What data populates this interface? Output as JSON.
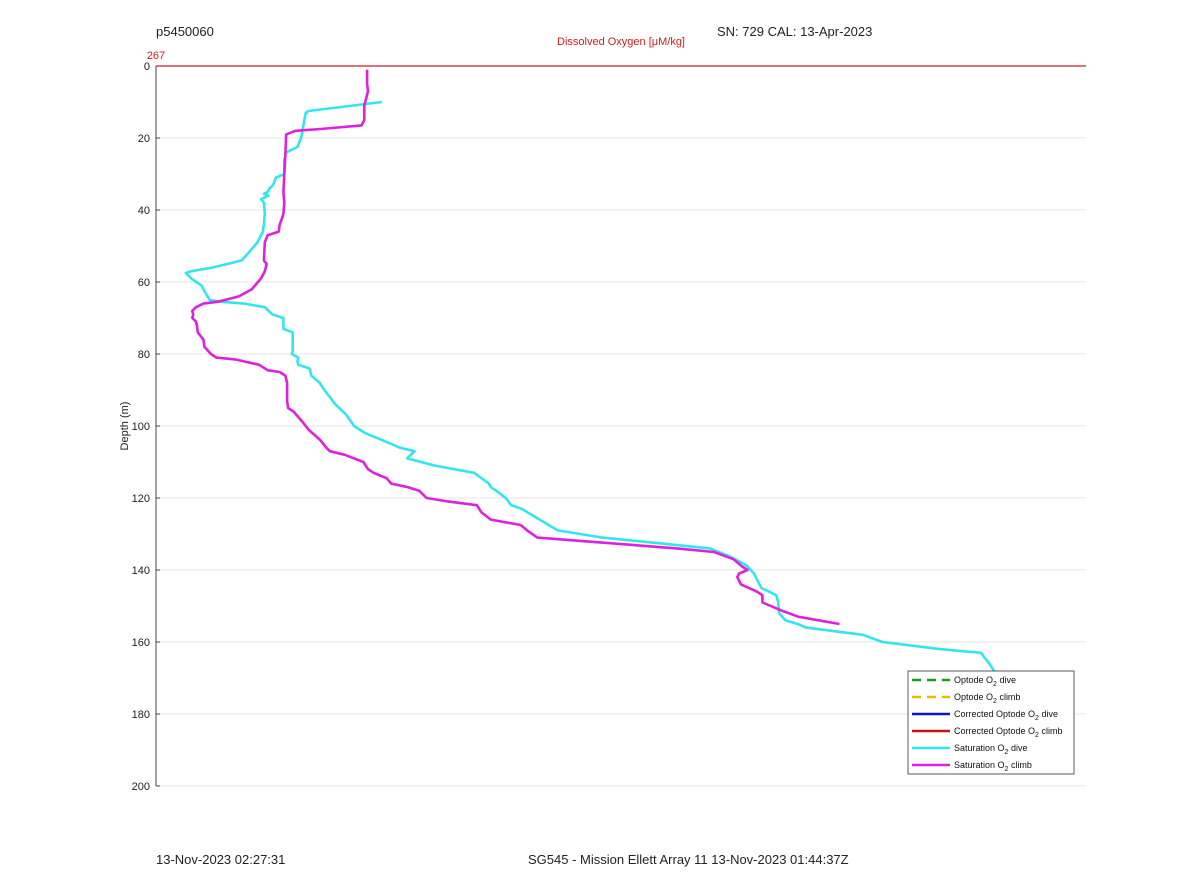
{
  "header": {
    "profile_id": "p5450060",
    "sn_cal": "SN: 729  CAL: 13-Apr-2023"
  },
  "footer": {
    "left": "13-Nov-2023 02:27:31",
    "center": "SG545 - Mission Ellett Array 11 13-Nov-2023 01:44:37Z"
  },
  "chart_data": {
    "type": "line",
    "title": "Dissolved Oxygen [μM/kg]",
    "top_axis_tick": "267",
    "ylabel": "Depth (m)",
    "ylim": [
      0,
      200
    ],
    "y_inverted": true,
    "yticks": [
      "0",
      "20",
      "40",
      "60",
      "80",
      "100",
      "120",
      "140",
      "160",
      "180",
      "200"
    ],
    "grid": "horizontal",
    "legend_position": "bottom-right",
    "reference_line_color": "#cc1f1f",
    "legend": [
      {
        "label": "Optode O",
        "sub": "2",
        "suffix": " dive",
        "color": "#1a9e1a",
        "dash": true
      },
      {
        "label": "Optode O",
        "sub": "2",
        "suffix": " climb",
        "color": "#e0c000",
        "dash": true
      },
      {
        "label": "Corrected Optode O",
        "sub": "2",
        "suffix": " dive",
        "color": "#1111cc",
        "dash": false
      },
      {
        "label": "Corrected Optode O",
        "sub": "2",
        "suffix": " climb",
        "color": "#cc1111",
        "dash": false
      },
      {
        "label": "Saturation O",
        "sub": "2",
        "suffix": " dive",
        "color": "#33e5ee",
        "dash": false
      },
      {
        "label": "Saturation O",
        "sub": "2",
        "suffix": " climb",
        "color": "#dd22dd",
        "dash": false
      }
    ],
    "series": [
      {
        "color": "#33e5ee",
        "points": [
          [
            0.243,
            10
          ],
          [
            0.164,
            12.5
          ],
          [
            0.161,
            13
          ],
          [
            0.156,
            20
          ],
          [
            0.152,
            22.5
          ],
          [
            0.14,
            24
          ],
          [
            0.138,
            26
          ],
          [
            0.138,
            30
          ],
          [
            0.129,
            31
          ],
          [
            0.126,
            33
          ],
          [
            0.122,
            34
          ],
          [
            0.12,
            35
          ],
          [
            0.116,
            35.5
          ],
          [
            0.121,
            36
          ],
          [
            0.113,
            37
          ],
          [
            0.116,
            38
          ],
          [
            0.117,
            41
          ],
          [
            0.116,
            44
          ],
          [
            0.115,
            46
          ],
          [
            0.109,
            49
          ],
          [
            0.099,
            52
          ],
          [
            0.092,
            54
          ],
          [
            0.077,
            55
          ],
          [
            0.06,
            56
          ],
          [
            0.038,
            57
          ],
          [
            0.032,
            57.5
          ],
          [
            0.038,
            59
          ],
          [
            0.049,
            61
          ],
          [
            0.053,
            63
          ],
          [
            0.058,
            65
          ],
          [
            0.07,
            65.5
          ],
          [
            0.095,
            66
          ],
          [
            0.117,
            67
          ],
          [
            0.125,
            69
          ],
          [
            0.137,
            70
          ],
          [
            0.137,
            73
          ],
          [
            0.147,
            74
          ],
          [
            0.147,
            79
          ],
          [
            0.146,
            80
          ],
          [
            0.153,
            81
          ],
          [
            0.152,
            82
          ],
          [
            0.153,
            83
          ],
          [
            0.165,
            84
          ],
          [
            0.167,
            86
          ],
          [
            0.176,
            88
          ],
          [
            0.181,
            90
          ],
          [
            0.187,
            92
          ],
          [
            0.193,
            94
          ],
          [
            0.205,
            97
          ],
          [
            0.213,
            100
          ],
          [
            0.225,
            102
          ],
          [
            0.244,
            104
          ],
          [
            0.262,
            106
          ],
          [
            0.278,
            107
          ],
          [
            0.27,
            109
          ],
          [
            0.3,
            111
          ],
          [
            0.342,
            113
          ],
          [
            0.358,
            116
          ],
          [
            0.36,
            117
          ],
          [
            0.366,
            118
          ],
          [
            0.376,
            120
          ],
          [
            0.382,
            122
          ],
          [
            0.393,
            123
          ],
          [
            0.406,
            125
          ],
          [
            0.419,
            127
          ],
          [
            0.432,
            129
          ],
          [
            0.48,
            131
          ],
          [
            0.596,
            134
          ],
          [
            0.6,
            134.5
          ],
          [
            0.615,
            136
          ],
          [
            0.63,
            138
          ],
          [
            0.636,
            139
          ],
          [
            0.643,
            141
          ],
          [
            0.647,
            143
          ],
          [
            0.651,
            145
          ],
          [
            0.667,
            147
          ],
          [
            0.669,
            149
          ],
          [
            0.67,
            152
          ],
          [
            0.677,
            154
          ],
          [
            0.69,
            155
          ],
          [
            0.699,
            156
          ],
          [
            0.76,
            158
          ],
          [
            0.781,
            160
          ],
          [
            0.844,
            162
          ],
          [
            0.887,
            163
          ],
          [
            0.89,
            164
          ],
          [
            0.896,
            166
          ],
          [
            0.901,
            168
          ],
          [
            0.906,
            169
          ]
        ]
      },
      {
        "color": "#dd22dd",
        "points": [
          [
            0.227,
            1
          ],
          [
            0.227,
            5
          ],
          [
            0.228,
            7
          ],
          [
            0.226,
            9
          ],
          [
            0.224,
            11
          ],
          [
            0.224,
            15
          ],
          [
            0.221,
            16.5
          ],
          [
            0.177,
            17.5
          ],
          [
            0.15,
            18
          ],
          [
            0.14,
            19
          ],
          [
            0.139,
            25
          ],
          [
            0.138,
            30
          ],
          [
            0.137,
            35
          ],
          [
            0.138,
            38
          ],
          [
            0.137,
            41
          ],
          [
            0.136,
            42
          ],
          [
            0.133,
            44
          ],
          [
            0.132,
            46
          ],
          [
            0.12,
            47
          ],
          [
            0.117,
            49
          ],
          [
            0.116,
            54
          ],
          [
            0.119,
            55
          ],
          [
            0.117,
            57
          ],
          [
            0.113,
            59
          ],
          [
            0.103,
            62
          ],
          [
            0.089,
            64
          ],
          [
            0.074,
            65
          ],
          [
            0.066,
            65.5
          ],
          [
            0.051,
            66
          ],
          [
            0.043,
            67
          ],
          [
            0.039,
            68
          ],
          [
            0.04,
            69
          ],
          [
            0.039,
            70
          ],
          [
            0.043,
            71
          ],
          [
            0.044,
            72
          ],
          [
            0.045,
            74
          ],
          [
            0.051,
            76
          ],
          [
            0.052,
            78
          ],
          [
            0.059,
            80
          ],
          [
            0.065,
            81
          ],
          [
            0.085,
            81.5
          ],
          [
            0.111,
            83
          ],
          [
            0.12,
            84.5
          ],
          [
            0.133,
            85
          ],
          [
            0.139,
            86
          ],
          [
            0.141,
            88
          ],
          [
            0.141,
            93
          ],
          [
            0.142,
            95
          ],
          [
            0.148,
            96
          ],
          [
            0.158,
            99
          ],
          [
            0.164,
            101
          ],
          [
            0.177,
            104
          ],
          [
            0.183,
            106
          ],
          [
            0.187,
            107
          ],
          [
            0.203,
            108
          ],
          [
            0.223,
            110
          ],
          [
            0.228,
            112
          ],
          [
            0.234,
            113
          ],
          [
            0.248,
            114.5
          ],
          [
            0.253,
            116
          ],
          [
            0.271,
            117
          ],
          [
            0.283,
            118
          ],
          [
            0.291,
            120
          ],
          [
            0.315,
            121
          ],
          [
            0.345,
            122
          ],
          [
            0.35,
            124
          ],
          [
            0.36,
            126
          ],
          [
            0.392,
            127.5
          ],
          [
            0.399,
            129
          ],
          [
            0.41,
            131
          ],
          [
            0.46,
            132
          ],
          [
            0.56,
            134
          ],
          [
            0.6,
            135
          ],
          [
            0.621,
            137
          ],
          [
            0.63,
            139
          ],
          [
            0.636,
            140
          ],
          [
            0.627,
            141
          ],
          [
            0.625,
            142
          ],
          [
            0.629,
            144
          ],
          [
            0.646,
            146
          ],
          [
            0.652,
            147
          ],
          [
            0.652,
            149
          ],
          [
            0.67,
            151
          ],
          [
            0.691,
            153
          ],
          [
            0.735,
            155
          ]
        ]
      }
    ]
  }
}
